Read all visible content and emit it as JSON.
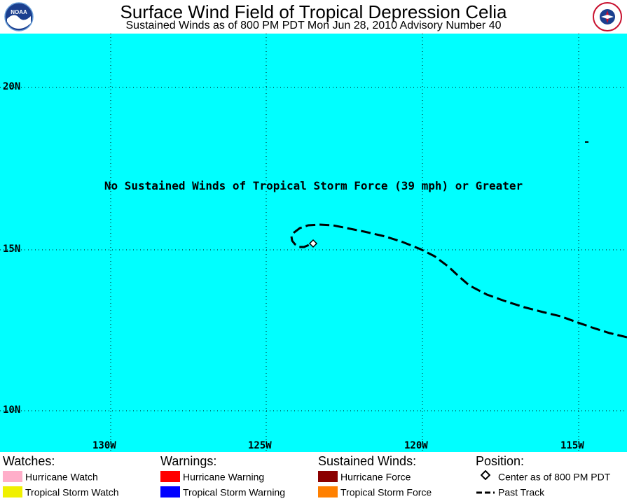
{
  "header": {
    "title": "Surface Wind Field of Tropical Depression Celia",
    "subtitle": "Sustained Winds as of 800 PM PDT Mon Jun 28, 2010    Advisory Number 40",
    "logo_left": "NOAA",
    "logo_right": "NATIONAL WEATHER SERVICE"
  },
  "map": {
    "background": "#00ffff",
    "message": "No Sustained Winds of Tropical Storm Force (39 mph) or Greater",
    "lat_labels": [
      "20N",
      "15N",
      "10N"
    ],
    "lon_labels": [
      "130W",
      "125W",
      "120W",
      "115W"
    ],
    "grid": "dotted",
    "track": {
      "style": "dashed",
      "center_marker": "diamond",
      "center": {
        "lat": 15.2,
        "lon": -123.2
      }
    }
  },
  "legend": {
    "watches": {
      "heading": "Watches:",
      "items": [
        {
          "label": "Hurricane Watch",
          "color": "#ffaec9"
        },
        {
          "label": "Tropical Storm Watch",
          "color": "#f0f000"
        }
      ]
    },
    "warnings": {
      "heading": "Warnings:",
      "items": [
        {
          "label": "Hurricane Warning",
          "color": "#ff0000"
        },
        {
          "label": "Tropical Storm Warning",
          "color": "#0000ff"
        }
      ]
    },
    "winds": {
      "heading": "Sustained Winds:",
      "items": [
        {
          "label": "Hurricane Force",
          "color": "#8b0000"
        },
        {
          "label": "Tropical Storm Force",
          "color": "#ff8000"
        }
      ]
    },
    "position": {
      "heading": "Position:",
      "items": [
        {
          "label": "Center as of 800 PM PDT",
          "icon": "diamond-icon"
        },
        {
          "label": "Past Track",
          "icon": "dashed-line-icon"
        }
      ]
    }
  }
}
